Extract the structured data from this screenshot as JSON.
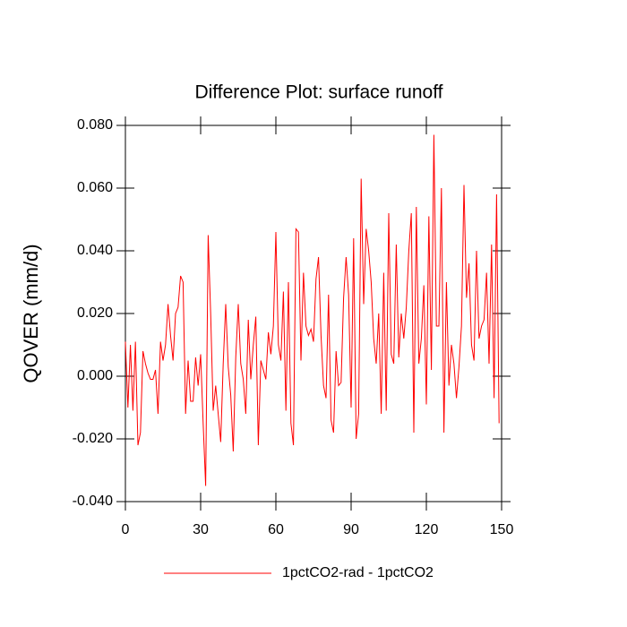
{
  "chart_data": {
    "type": "line",
    "title": "Difference Plot: surface runoff",
    "y_label": "QOVER  (mm/d)",
    "x": [
      0,
      1,
      2,
      3,
      4,
      5,
      6,
      7,
      8,
      9,
      10,
      11,
      12,
      13,
      14,
      15,
      16,
      17,
      18,
      19,
      20,
      21,
      22,
      23,
      24,
      25,
      26,
      27,
      28,
      29,
      30,
      31,
      32,
      33,
      34,
      35,
      36,
      37,
      38,
      39,
      40,
      41,
      42,
      43,
      44,
      45,
      46,
      47,
      48,
      49,
      50,
      51,
      52,
      53,
      54,
      55,
      56,
      57,
      58,
      59,
      60,
      61,
      62,
      63,
      64,
      65,
      66,
      67,
      68,
      69,
      70,
      71,
      72,
      73,
      74,
      75,
      76,
      77,
      78,
      79,
      80,
      81,
      82,
      83,
      84,
      85,
      86,
      87,
      88,
      89,
      90,
      91,
      92,
      93,
      94,
      95,
      96,
      97,
      98,
      99,
      100,
      101,
      102,
      103,
      104,
      105,
      106,
      107,
      108,
      109,
      110,
      111,
      112,
      113,
      114,
      115,
      116,
      117,
      118,
      119,
      120,
      121,
      122,
      123,
      124,
      125,
      126,
      127,
      128,
      129,
      130,
      131,
      132,
      133,
      134,
      135,
      136,
      137,
      138,
      139,
      140,
      141,
      142,
      143,
      144,
      145,
      146,
      147,
      148,
      149
    ],
    "series": [
      {
        "name": "1pctCO2-rad - 1pctCO2",
        "color": "#ff0000",
        "values": [
          0.011,
          -0.01,
          0.01,
          -0.011,
          0.011,
          -0.022,
          -0.018,
          0.008,
          0.004,
          0.001,
          -0.001,
          -0.001,
          0.002,
          -0.012,
          0.011,
          0.005,
          0.01,
          0.023,
          0.013,
          0.005,
          0.02,
          0.022,
          0.032,
          0.03,
          -0.012,
          0.005,
          -0.008,
          -0.008,
          0.006,
          -0.003,
          0.007,
          -0.015,
          -0.035,
          0.045,
          0.02,
          -0.011,
          -0.003,
          -0.012,
          -0.021,
          0.004,
          0.023,
          0.003,
          -0.006,
          -0.024,
          0.006,
          0.023,
          0.004,
          -0.001,
          -0.012,
          0.018,
          -0.001,
          0.01,
          0.019,
          -0.022,
          0.005,
          0.002,
          -0.001,
          0.014,
          0.007,
          0.016,
          0.046,
          0.01,
          0.005,
          0.027,
          -0.011,
          0.03,
          -0.015,
          -0.022,
          0.047,
          0.046,
          0.005,
          0.033,
          0.016,
          0.013,
          0.015,
          0.011,
          0.031,
          0.038,
          0.013,
          -0.003,
          -0.007,
          0.026,
          -0.014,
          -0.018,
          0.008,
          -0.003,
          -0.002,
          0.025,
          0.038,
          0.026,
          -0.01,
          0.044,
          -0.02,
          -0.012,
          0.063,
          0.023,
          0.047,
          0.04,
          0.03,
          0.012,
          0.004,
          0.02,
          -0.012,
          0.033,
          -0.011,
          0.052,
          0.007,
          0.004,
          0.042,
          0.006,
          0.02,
          0.012,
          0.022,
          0.04,
          0.052,
          -0.018,
          0.054,
          0.004,
          0.012,
          0.029,
          -0.009,
          0.051,
          0.002,
          0.077,
          0.016,
          0.016,
          0.06,
          -0.018,
          0.03,
          -0.003,
          0.01,
          0.004,
          -0.007,
          0.003,
          0.016,
          0.061,
          0.025,
          0.036,
          0.01,
          0.005,
          0.04,
          0.012,
          0.016,
          0.018,
          0.033,
          0.004,
          0.042,
          -0.007,
          0.058,
          -0.015
        ]
      }
    ],
    "xlim": [
      0,
      150
    ],
    "xticks": [
      0,
      30,
      60,
      90,
      120,
      150
    ],
    "ylim": [
      -0.04,
      0.08
    ],
    "yticks": [
      {
        "value": -0.04,
        "label": "-0.040"
      },
      {
        "value": -0.02,
        "label": "-0.020"
      },
      {
        "value": 0,
        "label": "0.000"
      },
      {
        "value": 0.02,
        "label": "0.020"
      },
      {
        "value": 0.04,
        "label": "0.040"
      },
      {
        "value": 0.06,
        "label": "0.060"
      },
      {
        "value": 0.08,
        "label": "0.080"
      }
    ]
  }
}
